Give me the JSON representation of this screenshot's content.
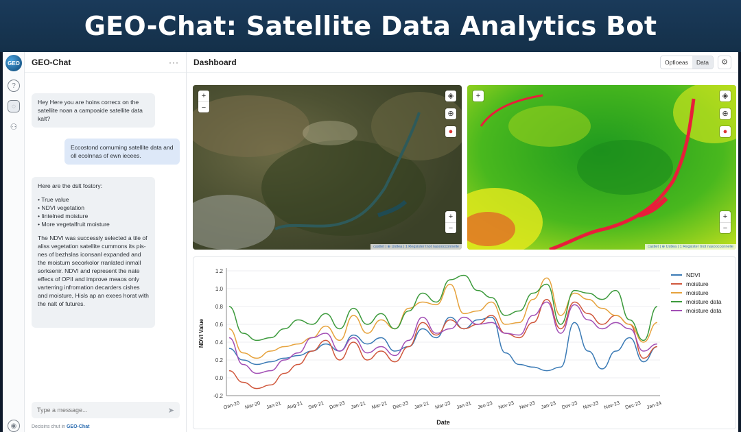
{
  "banner": {
    "title": "GEO-Chat: Satellite Data Analytics Bot"
  },
  "rail": {
    "logo_text": "GEO",
    "icons": [
      "help-icon",
      "chat-icon",
      "users-icon",
      "account-icon"
    ]
  },
  "chat": {
    "title": "GEO-Chat",
    "menu": "···",
    "messages": [
      {
        "role": "bot",
        "text": "Hey Here you are hoins correcx on the satellite noan a campoaide satellite data kalt?"
      },
      {
        "role": "user",
        "text": "Eccostond comuming satellite data and oll ecolnnas of ewn iecees."
      },
      {
        "role": "bot",
        "intro": "Here are the dslt fostory:",
        "items": [
          "True value",
          "NDVI vegetation",
          "Iintelned moisture",
          "More vegetalfruit moisture"
        ],
        "text": "The NDVI was successly selected a tile of aliss vegetation satellite cummons its pis-nes of bezhslas iconsanl expanded and the moisturn secorkolor rranlated inmall sorksenir. NDVI and represent the nate effecs of OPII and improve meaos only varterring infromation decarders cishes and moisture, Hisls ap an exees horat with the nalt of futures."
      }
    ],
    "input_placeholder": "Type a message...",
    "footer_prefix": "Decisins chut in",
    "footer_brand": "GEO-Chat"
  },
  "dashboard": {
    "title": "Dashboard",
    "options_label": "Opfioeas",
    "data_label": "Data",
    "map_attribution": "castlet | ⊕ Ustlea | 1 Regsister tnot nasoocconnelle",
    "map2_attribution": "castlet | ⊕ Ustlea | 1 Regsister tnot nasoocconnelle"
  },
  "chart_data": {
    "type": "line",
    "title": "",
    "xlabel": "Date",
    "ylabel": "NDVI Value",
    "ylim": [
      -0.2,
      1.2
    ],
    "yticks": [
      "1.2",
      "1.0",
      "0.8",
      "0.6",
      "0.4",
      "0.2",
      "0.0",
      "-0.2"
    ],
    "xticks": [
      "Oan-20",
      "Mar-20",
      "Jan-21",
      "Aug-21",
      "Sep-21",
      "Dos-23",
      "Jan-21",
      "Mar-21",
      "Dec-23",
      "Jan-21",
      "Mar-23",
      "Jan-21",
      "Jeo-23",
      "Nov-23",
      "Nev-23",
      "Jan-23",
      "Dov-23",
      "Nov-23",
      "Nov-23",
      "Dec-23",
      "Jan-24"
    ],
    "grid": true,
    "legend_position": "right",
    "colors": {
      "NDVI": "#3a7ab5",
      "moisture_red": "#d0573c",
      "moisture_orange": "#e6a23c",
      "moisture_data_green": "#3c9a3c",
      "moisture_data_purple": "#a24fb5"
    },
    "series": [
      {
        "name": "NDVI",
        "color": "#3a7ab5",
        "values": [
          0.33,
          0.2,
          0.15,
          0.18,
          0.22,
          0.25,
          0.3,
          0.38,
          0.3,
          0.48,
          0.38,
          0.45,
          0.3,
          0.35,
          0.55,
          0.45,
          0.68,
          0.55,
          0.65,
          0.68,
          0.28,
          0.15,
          0.12,
          0.08,
          0.12,
          0.62,
          0.3,
          0.1,
          0.3,
          0.45,
          0.18,
          0.35
        ]
      },
      {
        "name": "moisture",
        "color": "#d0573c",
        "values": [
          0.08,
          -0.05,
          -0.12,
          -0.08,
          0.05,
          0.15,
          0.3,
          0.42,
          0.2,
          0.4,
          0.2,
          0.3,
          0.18,
          0.35,
          0.62,
          0.48,
          0.65,
          0.55,
          0.6,
          0.7,
          0.5,
          0.45,
          0.62,
          0.88,
          0.55,
          0.85,
          0.72,
          0.6,
          0.7,
          0.6,
          0.22,
          0.35
        ]
      },
      {
        "name": "moisture",
        "color": "#e6a23c",
        "values": [
          0.55,
          0.28,
          0.22,
          0.3,
          0.35,
          0.38,
          0.45,
          0.58,
          0.42,
          0.7,
          0.5,
          0.65,
          0.55,
          0.78,
          0.85,
          0.82,
          1.05,
          0.72,
          0.75,
          0.85,
          0.6,
          0.62,
          0.88,
          1.12,
          0.7,
          0.95,
          0.88,
          0.78,
          0.7,
          0.6,
          0.4,
          0.62
        ]
      },
      {
        "name": "moisture data",
        "color": "#3c9a3c",
        "values": [
          0.8,
          0.5,
          0.42,
          0.45,
          0.55,
          0.65,
          0.6,
          0.72,
          0.55,
          0.78,
          0.6,
          0.72,
          0.55,
          0.75,
          0.95,
          0.85,
          1.1,
          1.15,
          0.98,
          0.9,
          0.7,
          0.75,
          0.95,
          1.05,
          0.6,
          0.98,
          0.95,
          0.88,
          0.98,
          0.65,
          0.42,
          0.8
        ]
      },
      {
        "name": "moisture data",
        "color": "#a24fb5",
        "values": [
          0.45,
          0.15,
          0.05,
          0.08,
          0.2,
          0.28,
          0.45,
          0.5,
          0.3,
          0.45,
          0.28,
          0.35,
          0.25,
          0.42,
          0.68,
          0.5,
          0.55,
          0.68,
          0.6,
          0.62,
          0.5,
          0.48,
          0.7,
          0.85,
          0.5,
          0.82,
          0.65,
          0.55,
          0.62,
          0.55,
          0.3,
          0.38
        ]
      }
    ]
  }
}
